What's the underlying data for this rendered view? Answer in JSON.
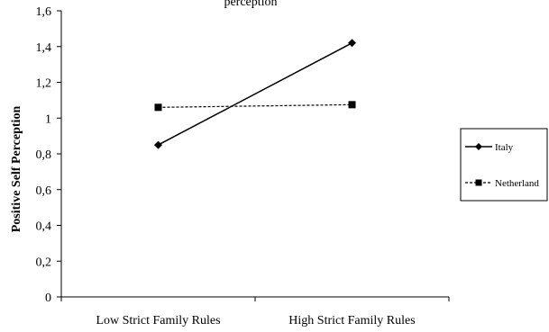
{
  "chart_data": {
    "type": "line",
    "title": "",
    "title_fragment": "perception",
    "xlabel": "",
    "ylabel": "Positive Self Perception",
    "categories": [
      "Low Strict Family Rules",
      "High Strict Family Rules"
    ],
    "ylim": [
      0,
      1.6
    ],
    "yticks": [
      "0",
      "0,2",
      "0,4",
      "0,6",
      "0,8",
      "1",
      "1,2",
      "1,4",
      "1,6"
    ],
    "series": [
      {
        "name": "Italy",
        "values": [
          0.85,
          1.42
        ],
        "line": "solid",
        "marker": "diamond",
        "color": "#000000"
      },
      {
        "name": "Netherland",
        "values": [
          1.06,
          1.075
        ],
        "line": "dashed",
        "marker": "square",
        "color": "#000000"
      }
    ],
    "grid": false,
    "legend_position": "right"
  }
}
